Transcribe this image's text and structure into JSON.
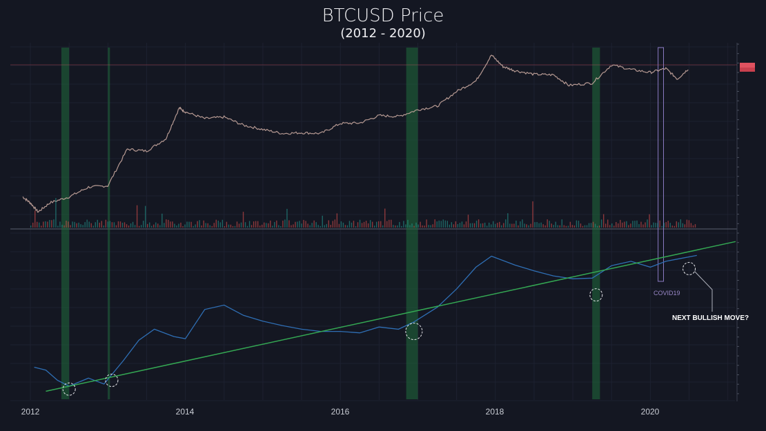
{
  "title": "BTCUSD Price",
  "subtitle": "(2012 - 2020)",
  "x_tick_labels": [
    "2012",
    "2014",
    "2016",
    "2018",
    "2020"
  ],
  "annotations": {
    "covid": "COVID19",
    "next_move": "NEXT BULLISH MOVE?"
  },
  "colors": {
    "background": "#141722",
    "highlight_band": "#1f6b3c",
    "trend_line": "#34a853",
    "indicator_line": "#2f6fb5",
    "candle_up": "#26a69a",
    "candle_down": "#ef5350",
    "covid_box": "#8b7bc4",
    "price_line": "#e05260"
  },
  "chart_data": [
    {
      "type": "line",
      "name": "BTCUSD price (log scale)",
      "scale": "log",
      "x": [
        2011.9,
        2012.0,
        2012.1,
        2012.25,
        2012.5,
        2012.75,
        2013.0,
        2013.25,
        2013.5,
        2013.75,
        2013.92,
        2014.0,
        2014.25,
        2014.5,
        2014.75,
        2015.0,
        2015.25,
        2015.5,
        2015.75,
        2016.0,
        2016.25,
        2016.5,
        2016.75,
        2017.0,
        2017.25,
        2017.5,
        2017.75,
        2017.95,
        2018.1,
        2018.25,
        2018.5,
        2018.75,
        2018.95,
        2019.25,
        2019.5,
        2019.75,
        2020.0,
        2020.2,
        2020.35,
        2020.5
      ],
      "y": [
        7,
        5,
        3,
        5,
        7,
        12,
        13,
        100,
        90,
        180,
        1000,
        800,
        550,
        600,
        380,
        300,
        240,
        250,
        240,
        420,
        430,
        650,
        620,
        900,
        1100,
        2500,
        4500,
        19000,
        10000,
        8000,
        6500,
        6300,
        3500,
        4000,
        11000,
        8500,
        7200,
        9000,
        5000,
        9200
      ]
    },
    {
      "type": "line",
      "name": "indicator",
      "x": [
        2012.05,
        2012.2,
        2012.35,
        2012.5,
        2012.75,
        2012.95,
        2013.2,
        2013.4,
        2013.6,
        2013.85,
        2014.0,
        2014.25,
        2014.5,
        2014.75,
        2015.0,
        2015.25,
        2015.5,
        2015.75,
        2016.0,
        2016.25,
        2016.5,
        2016.75,
        2016.95,
        2017.25,
        2017.5,
        2017.75,
        2017.95,
        2018.25,
        2018.5,
        2018.75,
        2019.0,
        2019.25,
        2019.5,
        2019.75,
        2020.0,
        2020.2,
        2020.35,
        2020.6
      ],
      "y": [
        0.73,
        0.69,
        0.55,
        0.47,
        0.58,
        0.5,
        0.82,
        1.1,
        1.25,
        1.15,
        1.12,
        1.52,
        1.58,
        1.44,
        1.36,
        1.3,
        1.25,
        1.22,
        1.22,
        1.2,
        1.28,
        1.25,
        1.35,
        1.55,
        1.8,
        2.1,
        2.25,
        2.13,
        2.05,
        1.98,
        1.94,
        1.95,
        2.12,
        2.18,
        2.1,
        2.18,
        2.21,
        2.26
      ]
    },
    {
      "type": "line",
      "name": "trend line",
      "x": [
        2012.2,
        2021.1
      ],
      "y": [
        0.4,
        2.45
      ]
    }
  ],
  "bands": [
    {
      "x0": 2012.4,
      "x1": 2012.5
    },
    {
      "x0": 2013.0,
      "x1": 2013.02
    },
    {
      "x0": 2016.85,
      "x1": 2017.0
    },
    {
      "x0": 2019.25,
      "x1": 2019.35
    }
  ],
  "touch_points": [
    {
      "x": 2012.5,
      "y": 0.43
    },
    {
      "x": 2013.05,
      "y": 0.55
    },
    {
      "x": 2016.95,
      "y": 1.22
    },
    {
      "x": 2019.3,
      "y": 1.72
    },
    {
      "x": 2020.5,
      "y": 2.08
    }
  ],
  "covid_box": {
    "x0": 2020.1,
    "x1": 2020.17
  }
}
